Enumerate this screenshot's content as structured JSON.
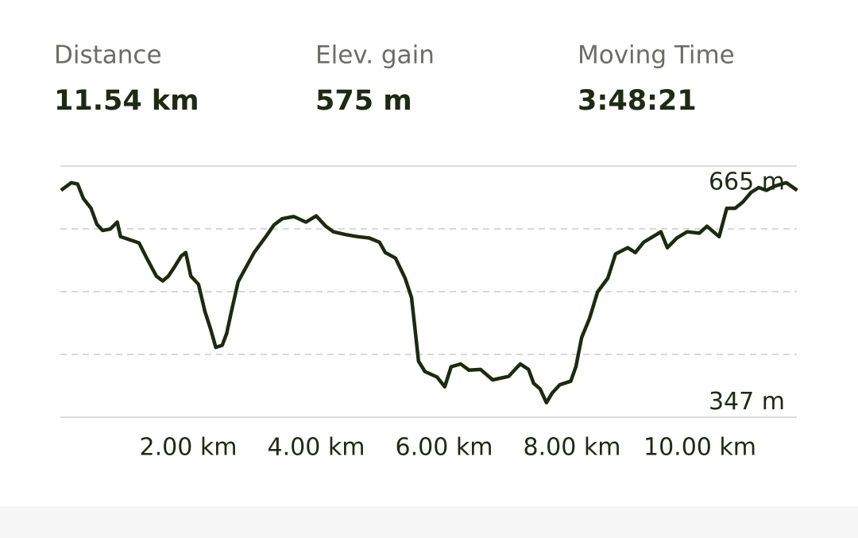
{
  "stats": [
    {
      "label": "Distance",
      "value": "11.54 km"
    },
    {
      "label": "Elev. gain",
      "value": "575 m"
    },
    {
      "label": "Moving Time",
      "value": "3:48:21"
    }
  ],
  "chart_data": {
    "type": "line",
    "x": [
      0.01,
      0.17,
      0.27,
      0.36,
      0.48,
      0.57,
      0.66,
      0.78,
      0.89,
      0.94,
      1.1,
      1.23,
      1.35,
      1.5,
      1.6,
      1.69,
      1.79,
      1.89,
      1.96,
      2.04,
      2.16,
      2.26,
      2.35,
      2.43,
      2.53,
      2.6,
      2.68,
      2.78,
      2.91,
      3.03,
      3.22,
      3.34,
      3.47,
      3.65,
      3.84,
      4.0,
      4.15,
      4.27,
      4.46,
      4.65,
      4.83,
      4.99,
      5.08,
      5.24,
      5.39,
      5.49,
      5.54,
      5.6,
      5.7,
      5.89,
      6.01,
      6.11,
      6.26,
      6.39,
      6.57,
      6.76,
      7.01,
      7.19,
      7.32,
      7.4,
      7.5,
      7.6,
      7.69,
      7.81,
      7.98,
      8.06,
      8.15,
      8.27,
      8.4,
      8.56,
      8.68,
      8.87,
      8.99,
      9.12,
      9.3,
      9.39,
      9.49,
      9.64,
      9.8,
      9.99,
      10.11,
      10.3,
      10.42,
      10.55,
      10.67,
      10.8,
      10.92,
      11.04,
      11.17,
      11.35,
      11.52
    ],
    "series": [
      {
        "color": "#1c2a10",
        "values": [
          654,
          665,
          663,
          642,
          628,
          605,
          596,
          598,
          608,
          587,
          582,
          578,
          556,
          530,
          523,
          530,
          544,
          559,
          564,
          530,
          518,
          479,
          453,
          427,
          430,
          447,
          481,
          522,
          544,
          564,
          588,
          604,
          613,
          616,
          608,
          617,
          602,
          594,
          590,
          587,
          585,
          579,
          564,
          556,
          527,
          499,
          458,
          407,
          392,
          384,
          370,
          399,
          403,
          394,
          395,
          380,
          385,
          403,
          395,
          375,
          367,
          347,
          361,
          373,
          378,
          399,
          441,
          468,
          507,
          527,
          562,
          571,
          564,
          579,
          589,
          594,
          571,
          585,
          594,
          592,
          602,
          587,
          628,
          628,
          637,
          651,
          658,
          654,
          660,
          665,
          654
        ]
      }
    ],
    "xlim": [
      0,
      11.54
    ],
    "ylim": [
      326,
      689
    ],
    "xticks": [
      {
        "value": 2,
        "label": "2.00 km"
      },
      {
        "value": 4,
        "label": "4.00 km"
      },
      {
        "value": 6,
        "label": "6.00 km"
      },
      {
        "value": 8,
        "label": "8.00 km"
      },
      {
        "value": 10,
        "label": "10.00 km"
      }
    ],
    "yticks": [
      {
        "value": 665,
        "label": "665 m"
      },
      {
        "value": 347,
        "label": "347 m"
      }
    ],
    "grid": true
  }
}
